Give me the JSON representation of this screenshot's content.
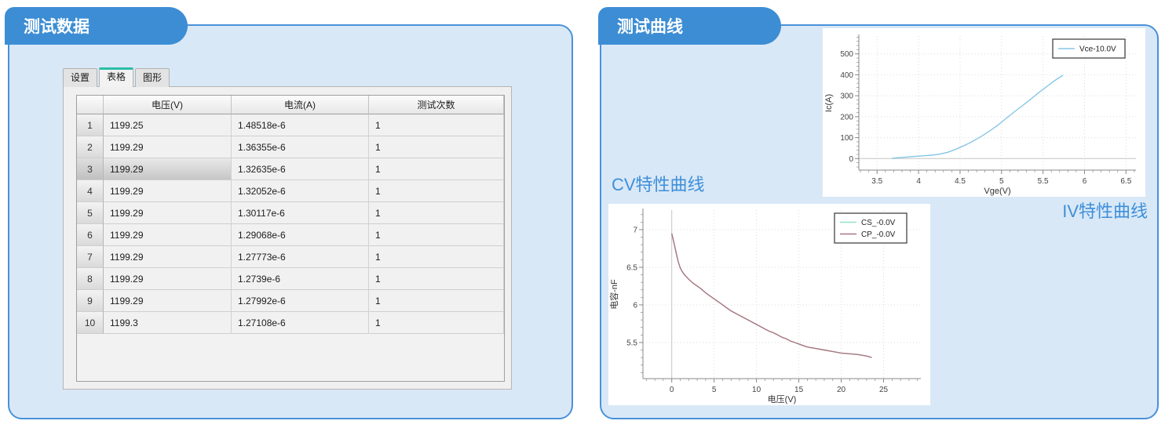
{
  "left_panel": {
    "title": "测试数据",
    "tabs": [
      {
        "label": "设置",
        "selected": false
      },
      {
        "label": "表格",
        "selected": true
      },
      {
        "label": "图形",
        "selected": false
      }
    ],
    "table": {
      "columns": [
        "电压(V)",
        "电流(A)",
        "测试次数"
      ],
      "rows": [
        {
          "n": "1",
          "voltage": "1199.25",
          "current": "1.48518e-6",
          "count": "1",
          "selected": false
        },
        {
          "n": "2",
          "voltage": "1199.29",
          "current": "1.36355e-6",
          "count": "1",
          "selected": false
        },
        {
          "n": "3",
          "voltage": "1199.29",
          "current": "1.32635e-6",
          "count": "1",
          "selected": true
        },
        {
          "n": "4",
          "voltage": "1199.29",
          "current": "1.32052e-6",
          "count": "1",
          "selected": false
        },
        {
          "n": "5",
          "voltage": "1199.29",
          "current": "1.30117e-6",
          "count": "1",
          "selected": false
        },
        {
          "n": "6",
          "voltage": "1199.29",
          "current": "1.29068e-6",
          "count": "1",
          "selected": false
        },
        {
          "n": "7",
          "voltage": "1199.29",
          "current": "1.27773e-6",
          "count": "1",
          "selected": false
        },
        {
          "n": "8",
          "voltage": "1199.29",
          "current": "1.2739e-6",
          "count": "1",
          "selected": false
        },
        {
          "n": "9",
          "voltage": "1199.29",
          "current": "1.27992e-6",
          "count": "1",
          "selected": false
        },
        {
          "n": "10",
          "voltage": "1199.3",
          "current": "1.27108e-6",
          "count": "1",
          "selected": false
        }
      ]
    }
  },
  "right_panel": {
    "title": "测试曲线",
    "cv_label": "CV特性曲线",
    "iv_label": "IV特性曲线"
  },
  "colors": {
    "accent_blue": "#3c8dd4",
    "panel_border": "#4a91d9",
    "panel_bg": "#d9e8f7",
    "tab_indicator_teal": "#2abda6",
    "label_blue": "#3e8fd9",
    "iv_line": "#85c7e6",
    "cs_line": "#95e2c6",
    "cp_line": "#ad7582"
  },
  "chart_data": [
    {
      "id": "iv",
      "type": "line",
      "xlabel": "Vge(V)",
      "ylabel": "Ic(A)",
      "xlim": [
        3.28,
        6.62
      ],
      "ylim": [
        -55,
        585
      ],
      "xticks": [
        3.5,
        4,
        4.5,
        5,
        5.5,
        6,
        6.5
      ],
      "yticks": [
        0,
        100,
        200,
        300,
        400,
        500
      ],
      "x_minor": 0.1,
      "y_minor": 20,
      "zero_y": 0,
      "grid": true,
      "legend_position": "top-right",
      "series": [
        {
          "name": "Vce-10.0V",
          "color": "#85c7e6",
          "points": [
            [
              3.68,
              1
            ],
            [
              3.75,
              4
            ],
            [
              3.85,
              7
            ],
            [
              3.95,
              10
            ],
            [
              4.05,
              13
            ],
            [
              4.15,
              16
            ],
            [
              4.25,
              21
            ],
            [
              4.35,
              30
            ],
            [
              4.45,
              45
            ],
            [
              4.55,
              62
            ],
            [
              4.65,
              82
            ],
            [
              4.75,
              105
            ],
            [
              4.85,
              130
            ],
            [
              4.95,
              158
            ],
            [
              5.05,
              190
            ],
            [
              5.15,
              222
            ],
            [
              5.25,
              252
            ],
            [
              5.35,
              283
            ],
            [
              5.45,
              315
            ],
            [
              5.55,
              345
            ],
            [
              5.65,
              375
            ],
            [
              5.74,
              398
            ]
          ]
        }
      ]
    },
    {
      "id": "cv",
      "type": "line",
      "xlabel": "电压(V)",
      "ylabel": "电容-nF",
      "xlim": [
        -3.4,
        29.4
      ],
      "ylim": [
        5.02,
        7.26
      ],
      "xticks": [
        0,
        5,
        10,
        15,
        20,
        25
      ],
      "yticks": [
        5.5,
        6,
        6.5,
        7
      ],
      "x_minor": 1,
      "y_minor": 0.1,
      "zero_x": 0,
      "grid": true,
      "legend_position": "top-right",
      "series": [
        {
          "name": "CS_-0.0V",
          "color": "#95e2c6",
          "points": [
            [
              0,
              6.95
            ],
            [
              0.25,
              6.83
            ],
            [
              0.5,
              6.7
            ],
            [
              0.75,
              6.58
            ],
            [
              1,
              6.49
            ],
            [
              1.25,
              6.44
            ],
            [
              1.5,
              6.4
            ],
            [
              2,
              6.34
            ],
            [
              2.5,
              6.29
            ],
            [
              3,
              6.25
            ],
            [
              3.5,
              6.21
            ],
            [
              4,
              6.16
            ],
            [
              4.5,
              6.12
            ],
            [
              5,
              6.08
            ],
            [
              5.5,
              6.04
            ],
            [
              6,
              6.0
            ],
            [
              6.5,
              5.96
            ],
            [
              7,
              5.92
            ],
            [
              7.5,
              5.89
            ],
            [
              8,
              5.86
            ],
            [
              8.5,
              5.83
            ],
            [
              9,
              5.8
            ],
            [
              9.5,
              5.77
            ],
            [
              10,
              5.74
            ],
            [
              10.5,
              5.71
            ],
            [
              11,
              5.68
            ],
            [
              11.5,
              5.65
            ],
            [
              12,
              5.63
            ],
            [
              12.5,
              5.6
            ],
            [
              13,
              5.57
            ],
            [
              13.5,
              5.55
            ],
            [
              14,
              5.52
            ],
            [
              14.5,
              5.5
            ],
            [
              15,
              5.48
            ],
            [
              15.5,
              5.46
            ],
            [
              16,
              5.44
            ],
            [
              17,
              5.42
            ],
            [
              18,
              5.4
            ],
            [
              19,
              5.38
            ],
            [
              20,
              5.36
            ],
            [
              21,
              5.35
            ],
            [
              22,
              5.34
            ],
            [
              23,
              5.32
            ],
            [
              23.6,
              5.3
            ]
          ]
        },
        {
          "name": "CP_-0.0V",
          "color": "#ad7582",
          "points": [
            [
              0,
              6.95
            ],
            [
              0.25,
              6.83
            ],
            [
              0.5,
              6.7
            ],
            [
              0.75,
              6.58
            ],
            [
              1,
              6.49
            ],
            [
              1.25,
              6.44
            ],
            [
              1.5,
              6.4
            ],
            [
              2,
              6.34
            ],
            [
              2.5,
              6.29
            ],
            [
              3,
              6.25
            ],
            [
              3.5,
              6.21
            ],
            [
              4,
              6.16
            ],
            [
              4.5,
              6.12
            ],
            [
              5,
              6.08
            ],
            [
              5.5,
              6.04
            ],
            [
              6,
              6.0
            ],
            [
              6.5,
              5.96
            ],
            [
              7,
              5.92
            ],
            [
              7.5,
              5.89
            ],
            [
              8,
              5.86
            ],
            [
              8.5,
              5.83
            ],
            [
              9,
              5.8
            ],
            [
              9.5,
              5.77
            ],
            [
              10,
              5.74
            ],
            [
              10.5,
              5.71
            ],
            [
              11,
              5.68
            ],
            [
              11.5,
              5.65
            ],
            [
              12,
              5.63
            ],
            [
              12.5,
              5.6
            ],
            [
              13,
              5.57
            ],
            [
              13.5,
              5.55
            ],
            [
              14,
              5.52
            ],
            [
              14.5,
              5.5
            ],
            [
              15,
              5.48
            ],
            [
              15.5,
              5.46
            ],
            [
              16,
              5.44
            ],
            [
              17,
              5.42
            ],
            [
              18,
              5.4
            ],
            [
              19,
              5.38
            ],
            [
              20,
              5.36
            ],
            [
              21,
              5.35
            ],
            [
              22,
              5.34
            ],
            [
              23,
              5.32
            ],
            [
              23.6,
              5.3
            ]
          ]
        }
      ]
    }
  ]
}
